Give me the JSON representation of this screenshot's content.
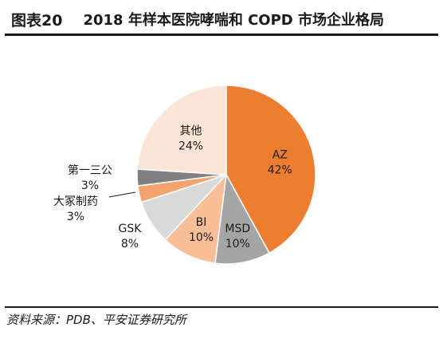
{
  "header": {
    "figure_number": "图表20",
    "title": "2018 年样本医院哮喘和 COPD 市场企业格局"
  },
  "footer": {
    "source": "资料来源：PDB、平安证券研究所"
  },
  "chart_data": {
    "type": "pie",
    "title": "2018 年样本医院哮喘和 COPD 市场企业格局",
    "slices": [
      {
        "name": "AZ",
        "value": 42,
        "label": "42%",
        "color": "#ED7D31"
      },
      {
        "name": "MSD",
        "value": 10,
        "label": "10%",
        "color": "#A5A5A5"
      },
      {
        "name": "BI",
        "value": 10,
        "label": "10%",
        "color": "#F8BE98"
      },
      {
        "name": "GSK",
        "value": 8,
        "label": "8%",
        "color": "#D9D9D9"
      },
      {
        "name": "大冢制药",
        "value": 3,
        "label": "3%",
        "color": "#F4A36C"
      },
      {
        "name": "第一三公",
        "value": 3,
        "label": "3%",
        "color": "#808080"
      },
      {
        "name": "其他",
        "value": 24,
        "label": "24%",
        "color": "#FCE4D6"
      }
    ],
    "start": "12 o'clock",
    "direction": "clockwise",
    "legend": "none"
  }
}
